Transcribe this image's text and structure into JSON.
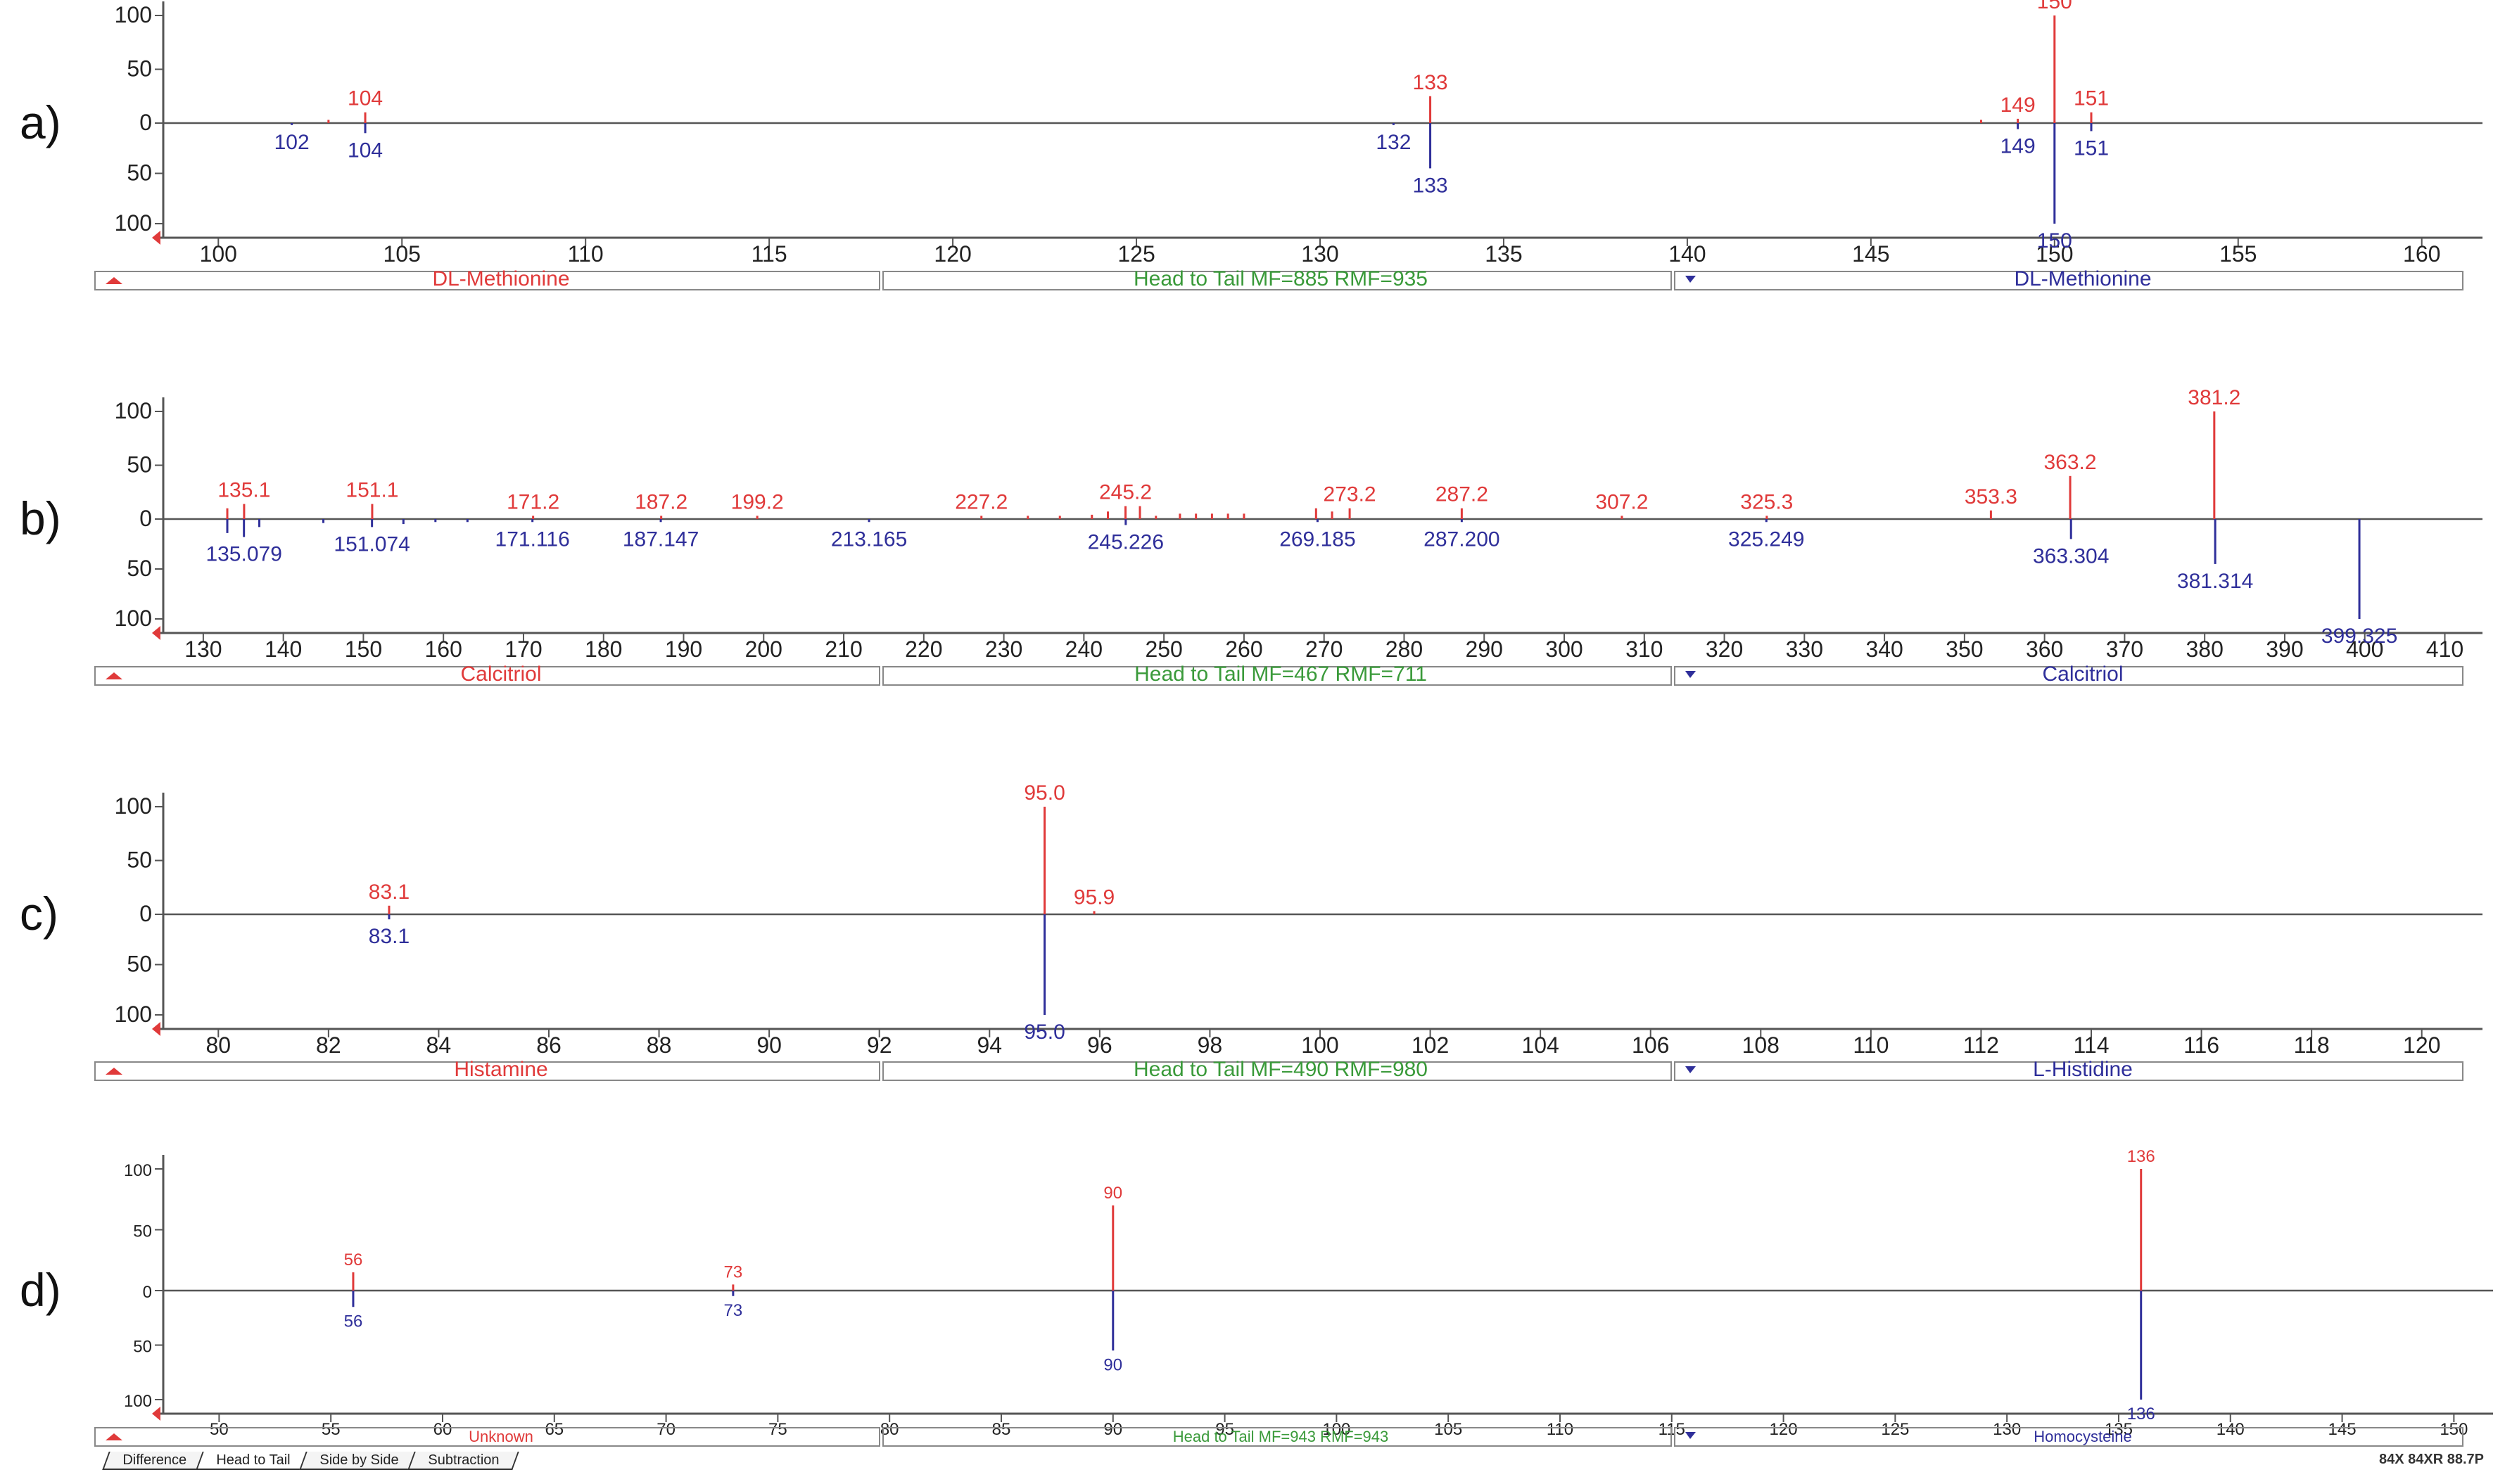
{
  "colors": {
    "head": "#e03a3a",
    "tail": "#2f2f9a",
    "title": "#3a9a3a",
    "axis": "#555555",
    "frame": "#888888"
  },
  "chart_data": [
    {
      "type": "head-to-tail-bar",
      "panel_label": "a)",
      "xlim": [
        98.5,
        161.5
      ],
      "xticks": [
        100,
        105,
        110,
        115,
        120,
        125,
        130,
        135,
        140,
        145,
        150,
        155,
        160
      ],
      "yticks": [
        100,
        50,
        0,
        50,
        100
      ],
      "head": [
        {
          "x": 103,
          "y": 3
        },
        {
          "x": 104,
          "y": 10,
          "label": "104"
        },
        {
          "x": 133,
          "y": 25,
          "label": "133"
        },
        {
          "x": 148,
          "y": 3
        },
        {
          "x": 149,
          "y": 4,
          "label": "149"
        },
        {
          "x": 150,
          "y": 100,
          "label": "150"
        },
        {
          "x": 151,
          "y": 10,
          "label": "151"
        }
      ],
      "tail": [
        {
          "x": 102,
          "y": 2,
          "label": "102"
        },
        {
          "x": 104,
          "y": 10,
          "label": "104"
        },
        {
          "x": 132,
          "y": 2,
          "label": "132"
        },
        {
          "x": 133,
          "y": 45,
          "label": "133"
        },
        {
          "x": 149,
          "y": 6,
          "label": "149"
        },
        {
          "x": 150,
          "y": 100,
          "label": "150"
        },
        {
          "x": 151,
          "y": 8,
          "label": "151"
        }
      ],
      "head_name": "DL-Methionine",
      "tail_name": "DL-Methionine",
      "match_text": "Head to Tail MF=885 RMF=935"
    },
    {
      "type": "head-to-tail-bar",
      "panel_label": "b)",
      "xlim": [
        125,
        414
      ],
      "xticks": [
        130,
        140,
        150,
        160,
        170,
        180,
        190,
        200,
        210,
        220,
        230,
        240,
        250,
        260,
        270,
        280,
        290,
        300,
        310,
        320,
        330,
        340,
        350,
        360,
        370,
        380,
        390,
        400,
        410
      ],
      "yticks": [
        100,
        50,
        0,
        50,
        100
      ],
      "head": [
        {
          "x": 133,
          "y": 10
        },
        {
          "x": 135.1,
          "y": 14,
          "label": "135.1"
        },
        {
          "x": 151.1,
          "y": 14,
          "label": "151.1"
        },
        {
          "x": 171.2,
          "y": 3,
          "label": "171.2"
        },
        {
          "x": 187.2,
          "y": 3,
          "label": "187.2"
        },
        {
          "x": 199.2,
          "y": 3,
          "label": "199.2"
        },
        {
          "x": 227.2,
          "y": 3,
          "label": "227.2"
        },
        {
          "x": 233,
          "y": 3
        },
        {
          "x": 237,
          "y": 3
        },
        {
          "x": 241,
          "y": 4
        },
        {
          "x": 243,
          "y": 7
        },
        {
          "x": 245.2,
          "y": 12,
          "label": "245.2"
        },
        {
          "x": 247,
          "y": 12
        },
        {
          "x": 249,
          "y": 3
        },
        {
          "x": 252,
          "y": 5
        },
        {
          "x": 254,
          "y": 5
        },
        {
          "x": 256,
          "y": 5
        },
        {
          "x": 258,
          "y": 5
        },
        {
          "x": 260,
          "y": 5
        },
        {
          "x": 269,
          "y": 10
        },
        {
          "x": 271,
          "y": 7
        },
        {
          "x": 273.2,
          "y": 10,
          "label": "273.2"
        },
        {
          "x": 287.2,
          "y": 10,
          "label": "287.2"
        },
        {
          "x": 307.2,
          "y": 3,
          "label": "307.2"
        },
        {
          "x": 325.3,
          "y": 3,
          "label": "325.3"
        },
        {
          "x": 353.3,
          "y": 8,
          "label": "353.3"
        },
        {
          "x": 363.2,
          "y": 40,
          "label": "363.2"
        },
        {
          "x": 381.2,
          "y": 100,
          "label": "381.2"
        }
      ],
      "tail": [
        {
          "x": 133,
          "y": 14
        },
        {
          "x": 135.079,
          "y": 18,
          "label": "135.079"
        },
        {
          "x": 137,
          "y": 8
        },
        {
          "x": 145,
          "y": 4
        },
        {
          "x": 151.074,
          "y": 8,
          "label": "151.074"
        },
        {
          "x": 155,
          "y": 5
        },
        {
          "x": 159,
          "y": 3
        },
        {
          "x": 163,
          "y": 3
        },
        {
          "x": 171.116,
          "y": 3,
          "label": "171.116"
        },
        {
          "x": 187.147,
          "y": 3,
          "label": "187.147"
        },
        {
          "x": 213.165,
          "y": 3,
          "label": "213.165"
        },
        {
          "x": 245.226,
          "y": 6,
          "label": "245.226"
        },
        {
          "x": 269.185,
          "y": 3,
          "label": "269.185"
        },
        {
          "x": 287.2,
          "y": 3,
          "label": "287.200"
        },
        {
          "x": 325.249,
          "y": 3,
          "label": "325.249"
        },
        {
          "x": 363.304,
          "y": 20,
          "label": "363.304"
        },
        {
          "x": 381.314,
          "y": 45,
          "label": "381.314"
        },
        {
          "x": 399.325,
          "y": 100,
          "label": "399.325"
        }
      ],
      "head_name": "Calcitriol",
      "tail_name": "Calcitriol",
      "match_text": "Head to Tail MF=467 RMF=711"
    },
    {
      "type": "head-to-tail-bar",
      "panel_label": "c)",
      "xlim": [
        79,
        121
      ],
      "xticks": [
        80,
        82,
        84,
        86,
        88,
        90,
        92,
        94,
        96,
        98,
        100,
        102,
        104,
        106,
        108,
        110,
        112,
        114,
        116,
        118,
        120
      ],
      "yticks": [
        100,
        50,
        0,
        50,
        100
      ],
      "head": [
        {
          "x": 83.1,
          "y": 8,
          "label": "83.1"
        },
        {
          "x": 95.0,
          "y": 100,
          "label": "95.0"
        },
        {
          "x": 95.9,
          "y": 3,
          "label": "95.9"
        }
      ],
      "tail": [
        {
          "x": 83.1,
          "y": 5,
          "label": "83.1"
        },
        {
          "x": 95.0,
          "y": 100,
          "label": "95.0"
        }
      ],
      "head_name": "Histamine",
      "tail_name": "L-Histidine",
      "match_text": "Head to Tail MF=490 RMF=980"
    },
    {
      "type": "head-to-tail-bar",
      "panel_label": "d)",
      "xlim": [
        47.5,
        151.5
      ],
      "xticks": [
        50,
        55,
        60,
        65,
        70,
        75,
        80,
        85,
        90,
        95,
        100,
        105,
        110,
        115,
        120,
        125,
        130,
        135,
        140,
        145,
        150
      ],
      "yticks": [
        100,
        50,
        0,
        50,
        100
      ],
      "head": [
        {
          "x": 56,
          "y": 15,
          "label": "56"
        },
        {
          "x": 73,
          "y": 5,
          "label": "73"
        },
        {
          "x": 90,
          "y": 70,
          "label": "90"
        },
        {
          "x": 136,
          "y": 100,
          "label": "136"
        }
      ],
      "tail": [
        {
          "x": 56,
          "y": 15,
          "label": "56"
        },
        {
          "x": 73,
          "y": 5,
          "label": "73"
        },
        {
          "x": 90,
          "y": 55,
          "label": "90"
        },
        {
          "x": 136,
          "y": 100,
          "label": "136"
        }
      ],
      "head_name": "Unknown",
      "tail_name": "Homocysteine",
      "match_text": "Head to Tail MF=943 RMF=943"
    }
  ],
  "tabs": [
    "Difference",
    "Head to Tail",
    "Side by Side",
    "Subtraction"
  ],
  "status_text": "84X 84XR 88.7P"
}
